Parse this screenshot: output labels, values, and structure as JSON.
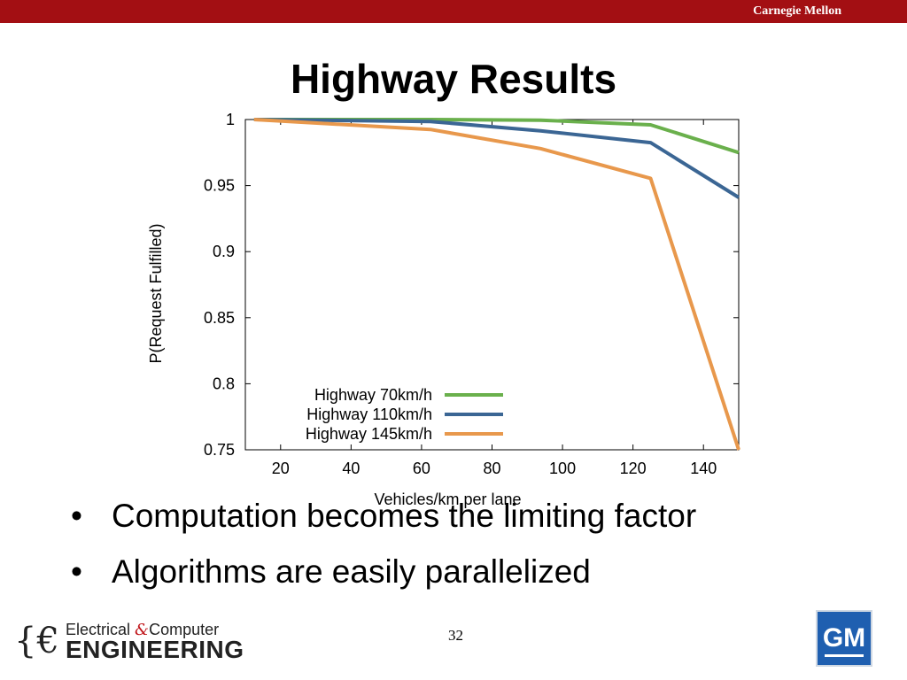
{
  "header": {
    "brand": "Carnegie Mellon",
    "title": "Highway Results"
  },
  "bullets": [
    "Computation becomes the limiting factor",
    "Algorithms are easily parallelized"
  ],
  "page_number": "32",
  "footer": {
    "ece_line1": "Electrical",
    "ece_amp": "&",
    "ece_line1_rest": "Computer",
    "ece_line2": "ENGINEERING",
    "gm_logo": "GM"
  },
  "colors": {
    "brand_bar": "#a30f13",
    "series_70": "#6ab04c",
    "series_110": "#3b6694",
    "series_145": "#e8984c"
  },
  "chart_data": {
    "type": "line",
    "title": "",
    "xlabel": "Vehicles/km per lane",
    "ylabel": "P(Request Fulfilled)",
    "xlim": [
      10,
      150
    ],
    "ylim": [
      0.75,
      1.0
    ],
    "xticks": [
      "20",
      "40",
      "60",
      "80",
      "100",
      "120",
      "140"
    ],
    "yticks": [
      "1",
      "0.95",
      "0.9",
      "0.85",
      "0.8",
      "0.75"
    ],
    "legend_position": "bottom-left",
    "series": [
      {
        "name": "Highway 70km/h",
        "color": "#6ab04c",
        "x": [
          12.5,
          62.5,
          93.75,
          125,
          150
        ],
        "y": [
          1.0,
          1.0,
          0.9995,
          0.996,
          0.975
        ]
      },
      {
        "name": "Highway 110km/h",
        "color": "#3b6694",
        "x": [
          12.5,
          62.5,
          93.75,
          125,
          150
        ],
        "y": [
          1.0,
          0.9985,
          0.9915,
          0.9825,
          0.941
        ]
      },
      {
        "name": "Highway 145km/h",
        "color": "#e8984c",
        "x": [
          12.5,
          62.5,
          93.75,
          125,
          150
        ],
        "y": [
          1.0,
          0.9925,
          0.978,
          0.9555,
          0.75
        ]
      }
    ]
  }
}
